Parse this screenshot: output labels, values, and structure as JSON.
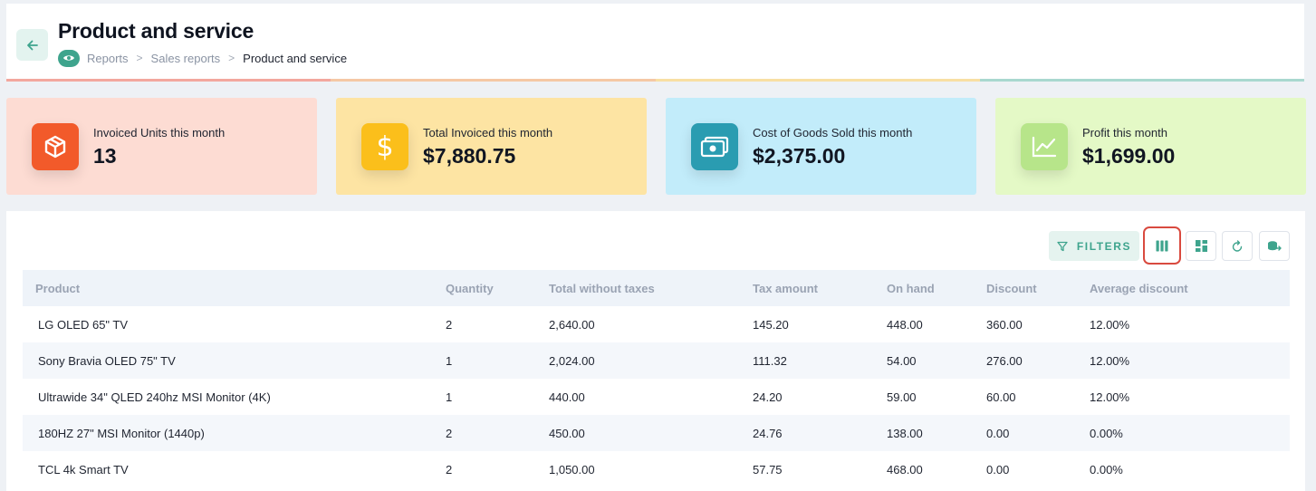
{
  "header": {
    "title": "Product and service",
    "breadcrumb": {
      "items": [
        "Reports",
        "Sales reports"
      ],
      "current": "Product and service",
      "separator": ">"
    }
  },
  "accent_colors": [
    "#f3a79e",
    "#f5c8a5",
    "#f8dfa3",
    "#a9d8cf"
  ],
  "stats": [
    {
      "label": "Invoiced Units this month",
      "value": "13",
      "bg": "#fddcd3",
      "icon_bg": "#f25a2a",
      "icon": "box-icon"
    },
    {
      "label": "Total Invoiced this month",
      "value": "$7,880.75",
      "bg": "#fde4a3",
      "icon_bg": "#fbbf1b",
      "icon": "dollar-icon"
    },
    {
      "label": "Cost of Goods Sold this month",
      "value": "$2,375.00",
      "bg": "#c2ecfa",
      "icon_bg": "#2a9cb1",
      "icon": "money-bill-icon"
    },
    {
      "label": "Profit this month",
      "value": "$1,699.00",
      "bg": "#e4f9c6",
      "icon_bg": "#b7e58a",
      "icon": "chart-line-icon"
    }
  ],
  "toolbar": {
    "filters_label": "FILTERS",
    "buttons": [
      "columns-icon",
      "layout-grid-icon",
      "refresh-icon",
      "export-icon"
    ]
  },
  "table": {
    "columns": [
      "Product",
      "Quantity",
      "Total without taxes",
      "Tax amount",
      "On hand",
      "Discount",
      "Average discount"
    ],
    "rows": [
      [
        "LG OLED 65\" TV",
        "2",
        "2,640.00",
        "145.20",
        "448.00",
        "360.00",
        "12.00%"
      ],
      [
        "Sony Bravia OLED 75\" TV",
        "1",
        "2,024.00",
        "111.32",
        "54.00",
        "276.00",
        "12.00%"
      ],
      [
        "Ultrawide 34\" QLED 240hz MSI Monitor (4K)",
        "1",
        "440.00",
        "24.20",
        "59.00",
        "60.00",
        "12.00%"
      ],
      [
        "180HZ 27\" MSI Monitor (1440p)",
        "2",
        "450.00",
        "24.76",
        "138.00",
        "0.00",
        "0.00%"
      ],
      [
        "TCL 4k Smart TV",
        "2",
        "1,050.00",
        "57.75",
        "468.00",
        "0.00",
        "0.00%"
      ]
    ]
  },
  "colors": {
    "accent": "#3ea48d",
    "highlight": "#d94a3f"
  }
}
